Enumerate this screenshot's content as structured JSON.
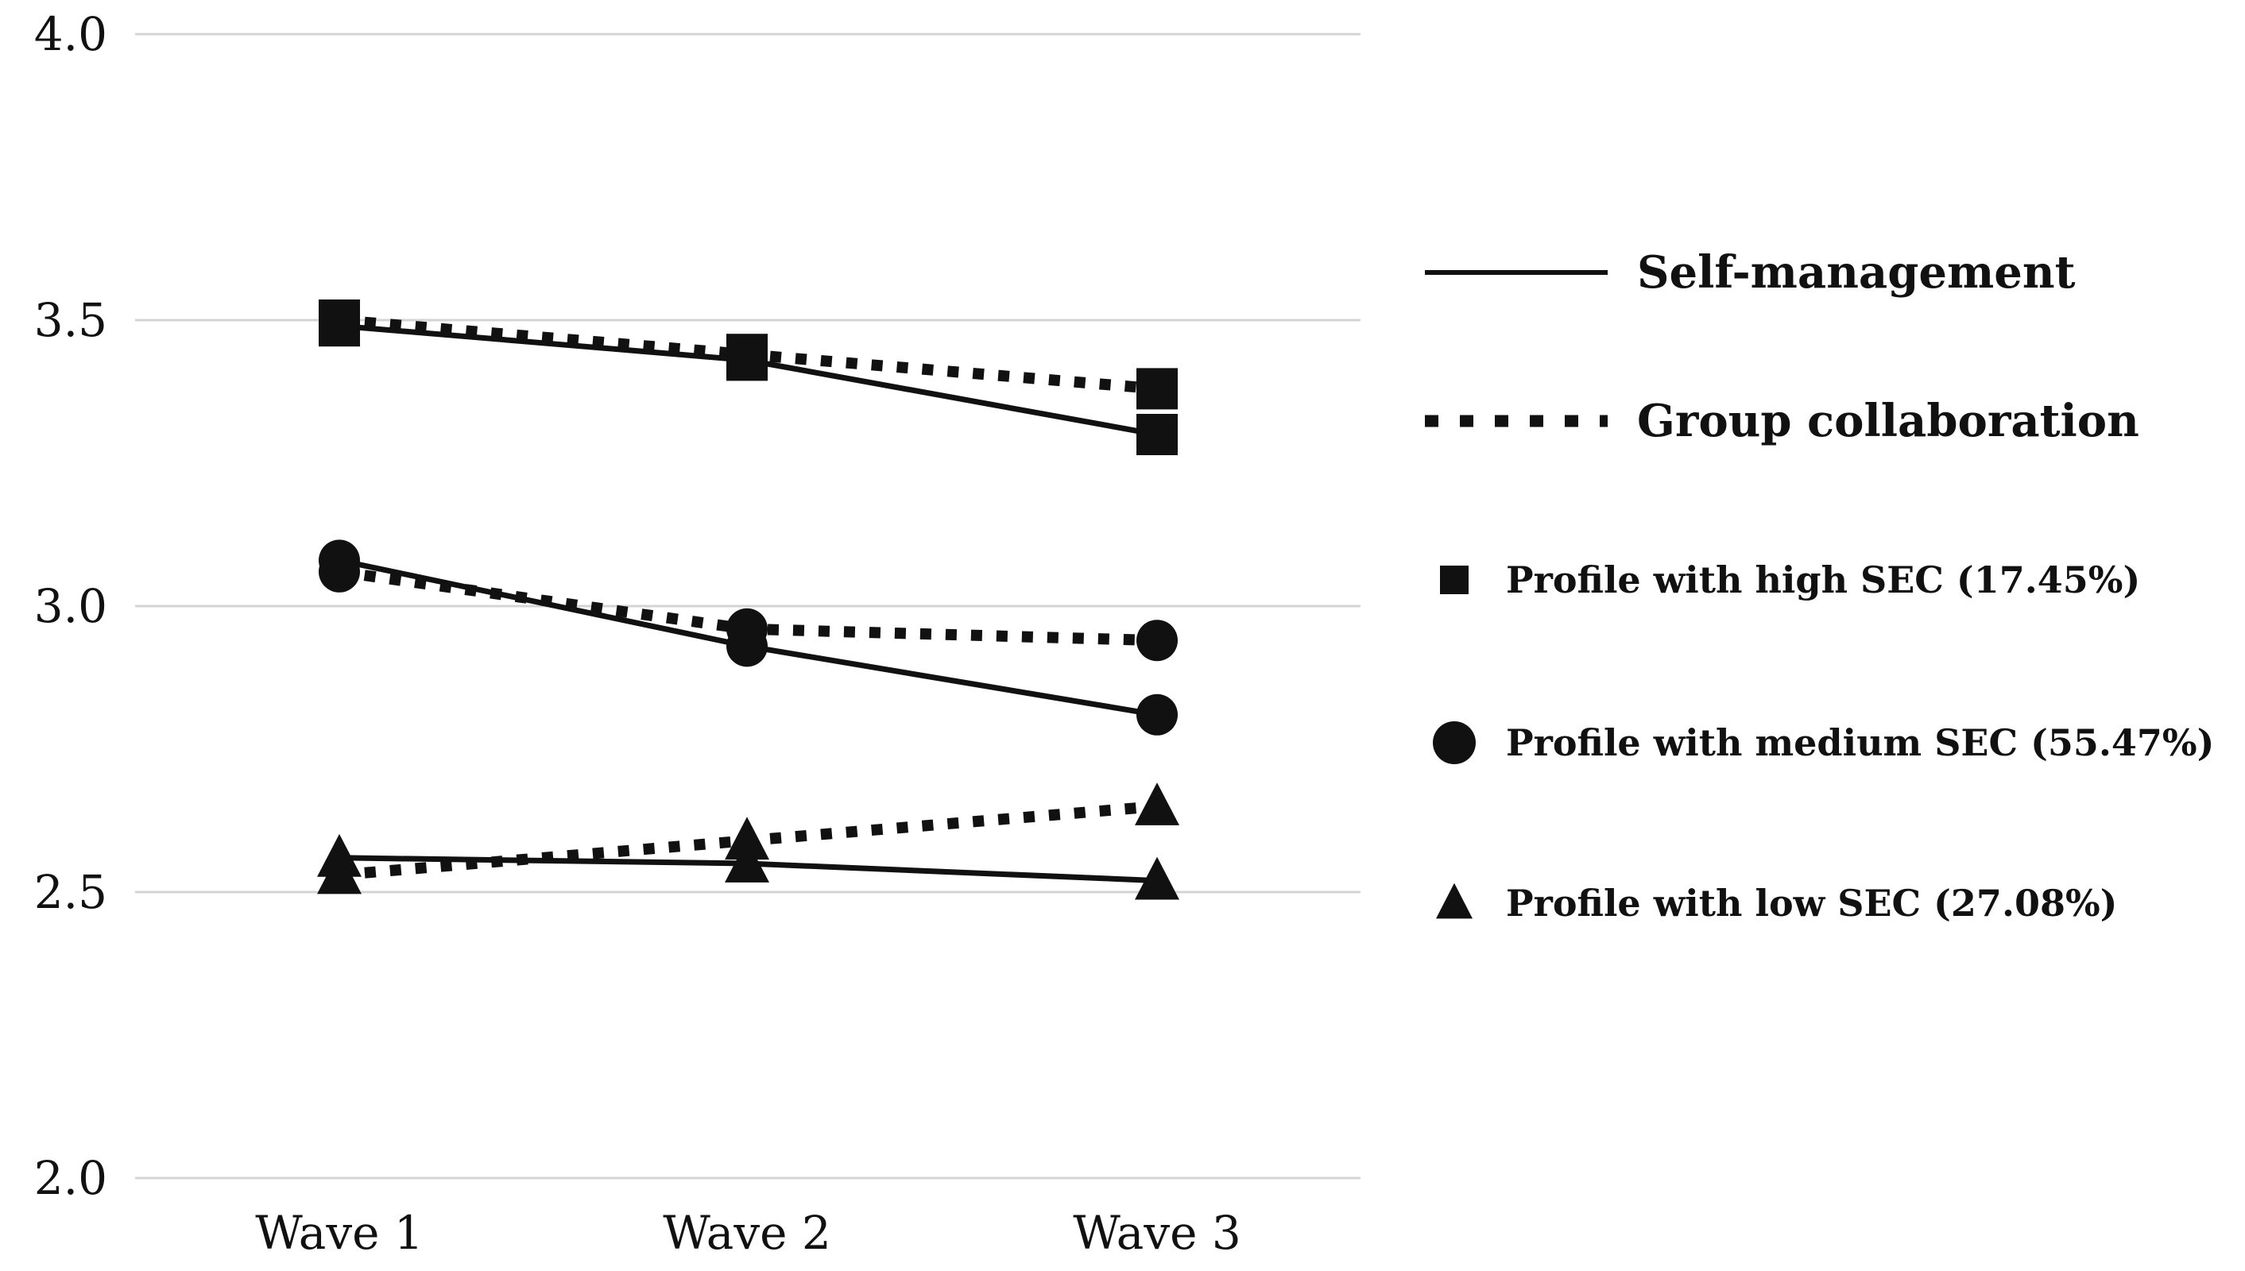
{
  "chart_data": {
    "type": "line",
    "title": "",
    "xlabel": "",
    "ylabel": "",
    "categories": [
      "Wave 1",
      "Wave 2",
      "Wave 3"
    ],
    "ylim": [
      2.0,
      4.0
    ],
    "yticks": [
      {
        "value": 2.0,
        "label": "2.0"
      },
      {
        "value": 2.5,
        "label": "2.5"
      },
      {
        "value": 3.0,
        "label": "3.0"
      },
      {
        "value": 3.5,
        "label": "3.5"
      },
      {
        "value": 4.0,
        "label": "4.0"
      }
    ],
    "grid": true,
    "legend_position": "right",
    "line_styles": [
      {
        "key": "solid",
        "label": "Self-management"
      },
      {
        "key": "dotted",
        "label": "Group collaboration"
      }
    ],
    "profiles": [
      {
        "key": "high",
        "marker": "square",
        "label": "Profile with high SEC (17.45%)"
      },
      {
        "key": "medium",
        "marker": "circle",
        "label": "Profile with medium SEC (55.47%)"
      },
      {
        "key": "low",
        "marker": "triangle",
        "label": "Profile with low SEC (27.08%)"
      }
    ],
    "series": [
      {
        "name": "High SEC – Self-management",
        "profile": "high",
        "style": "solid",
        "values": [
          3.49,
          3.43,
          3.3
        ]
      },
      {
        "name": "High SEC – Group collaboration",
        "profile": "high",
        "style": "dotted",
        "values": [
          3.5,
          3.44,
          3.38
        ]
      },
      {
        "name": "Medium SEC – Self-management",
        "profile": "medium",
        "style": "solid",
        "values": [
          3.08,
          2.93,
          2.81
        ]
      },
      {
        "name": "Medium SEC – Group collaboration",
        "profile": "medium",
        "style": "dotted",
        "values": [
          3.06,
          2.96,
          2.94
        ]
      },
      {
        "name": "Low SEC – Self-management",
        "profile": "low",
        "style": "solid",
        "values": [
          2.56,
          2.55,
          2.52
        ]
      },
      {
        "name": "Low SEC – Group collaboration",
        "profile": "low",
        "style": "dotted",
        "values": [
          2.53,
          2.59,
          2.65
        ]
      }
    ],
    "colors": {
      "line": "#111111",
      "grid": "#d4d4d4",
      "background": "#ffffff"
    }
  }
}
